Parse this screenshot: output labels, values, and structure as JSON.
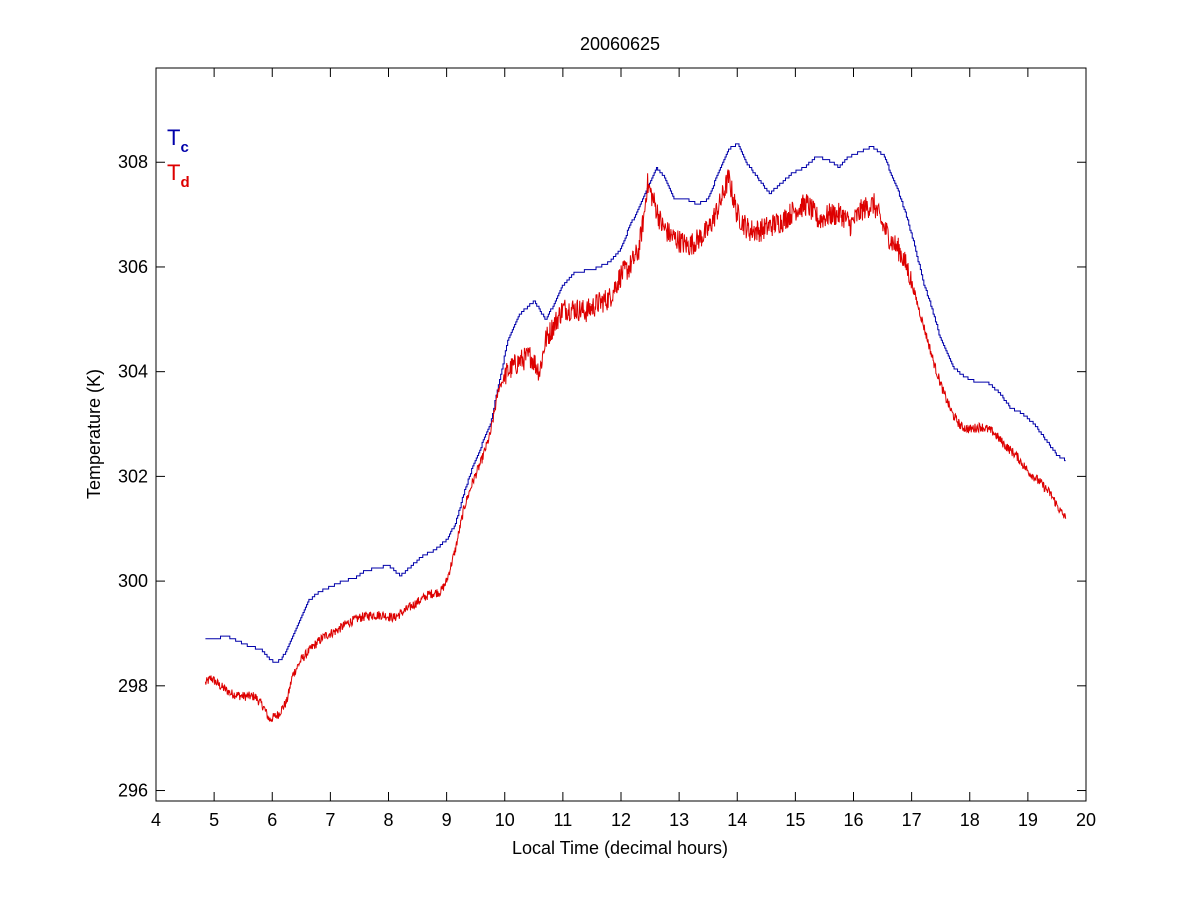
{
  "chart_data": {
    "type": "line",
    "title": "20060625",
    "xlabel": "Local Time (decimal hours)",
    "ylabel": "Temperature (K)",
    "xlim": [
      4,
      20
    ],
    "ylim": [
      295.8,
      309.8
    ],
    "xticks": [
      4,
      5,
      6,
      7,
      8,
      9,
      10,
      11,
      12,
      13,
      14,
      15,
      16,
      17,
      18,
      19,
      20
    ],
    "yticks": [
      296,
      298,
      300,
      302,
      304,
      306,
      308
    ],
    "grid": false,
    "legend": {
      "placement": "top-left",
      "entries": [
        {
          "main": "T",
          "sub": "c",
          "color": "#0000aa"
        },
        {
          "main": "T",
          "sub": "d",
          "color": "#dd0000"
        }
      ]
    },
    "series": [
      {
        "key": "Tc",
        "color": "#0000aa",
        "style": "step",
        "x": [
          4.85,
          5.0,
          5.2,
          5.4,
          5.6,
          5.8,
          5.95,
          6.05,
          6.15,
          6.3,
          6.45,
          6.6,
          6.8,
          7.0,
          7.2,
          7.4,
          7.6,
          7.8,
          8.0,
          8.2,
          8.4,
          8.6,
          8.8,
          9.0,
          9.15,
          9.3,
          9.45,
          9.6,
          9.75,
          9.9,
          10.05,
          10.25,
          10.5,
          10.7,
          10.85,
          11.0,
          11.2,
          11.5,
          11.8,
          12.0,
          12.15,
          12.3,
          12.45,
          12.6,
          12.75,
          12.9,
          13.1,
          13.3,
          13.5,
          13.7,
          13.85,
          14.0,
          14.15,
          14.35,
          14.55,
          14.75,
          14.95,
          15.15,
          15.35,
          15.55,
          15.75,
          15.9,
          16.1,
          16.3,
          16.5,
          16.6,
          16.75,
          16.9,
          17.05,
          17.2,
          17.35,
          17.5,
          17.7,
          17.9,
          18.1,
          18.3,
          18.5,
          18.7,
          18.9,
          19.1,
          19.3,
          19.5,
          19.65
        ],
        "y": [
          298.9,
          298.9,
          298.95,
          298.85,
          298.75,
          298.7,
          298.5,
          298.45,
          298.5,
          298.8,
          299.2,
          299.6,
          299.8,
          299.9,
          300.0,
          300.05,
          300.2,
          300.25,
          300.3,
          300.1,
          300.3,
          300.5,
          300.6,
          300.8,
          301.1,
          301.7,
          302.2,
          302.6,
          303.0,
          303.8,
          304.6,
          305.1,
          305.35,
          305.0,
          305.3,
          305.65,
          305.9,
          305.95,
          306.1,
          306.35,
          306.8,
          307.1,
          307.5,
          307.9,
          307.7,
          307.3,
          307.3,
          307.2,
          307.3,
          307.9,
          308.25,
          308.35,
          308.0,
          307.7,
          307.4,
          307.6,
          307.8,
          307.9,
          308.1,
          308.05,
          307.9,
          308.1,
          308.2,
          308.3,
          308.15,
          307.9,
          307.5,
          307.0,
          306.4,
          305.7,
          305.2,
          304.6,
          304.1,
          303.9,
          303.8,
          303.8,
          303.6,
          303.3,
          303.2,
          303.0,
          302.7,
          302.4,
          302.3
        ]
      },
      {
        "key": "Td",
        "color": "#dd0000",
        "style": "noisy",
        "x": [
          4.85,
          4.95,
          5.1,
          5.3,
          5.5,
          5.7,
          5.85,
          5.95,
          6.1,
          6.25,
          6.35,
          6.5,
          6.7,
          6.9,
          7.1,
          7.3,
          7.5,
          7.7,
          7.9,
          8.1,
          8.3,
          8.5,
          8.7,
          8.9,
          9.0,
          9.15,
          9.3,
          9.45,
          9.6,
          9.75,
          9.9,
          10.05,
          10.25,
          10.45,
          10.6,
          10.7,
          10.85,
          11.0,
          11.2,
          11.4,
          11.6,
          11.8,
          12.0,
          12.15,
          12.3,
          12.4,
          12.45,
          12.55,
          12.7,
          12.85,
          13.0,
          13.15,
          13.3,
          13.5,
          13.7,
          13.85,
          14.0,
          14.2,
          14.4,
          14.6,
          14.8,
          15.0,
          15.2,
          15.4,
          15.6,
          15.8,
          15.95,
          16.15,
          16.35,
          16.5,
          16.65,
          16.8,
          16.95,
          17.1,
          17.25,
          17.4,
          17.55,
          17.7,
          17.85,
          18.0,
          18.2,
          18.4,
          18.6,
          18.8,
          19.0,
          19.2,
          19.4,
          19.55,
          19.65
        ],
        "y": [
          298.05,
          298.15,
          298.0,
          297.85,
          297.8,
          297.8,
          297.6,
          297.35,
          297.45,
          297.7,
          298.2,
          298.5,
          298.75,
          298.95,
          299.05,
          299.2,
          299.3,
          299.35,
          299.35,
          299.3,
          299.45,
          299.6,
          299.75,
          299.8,
          300.0,
          300.6,
          301.4,
          301.9,
          302.3,
          302.8,
          303.7,
          304.0,
          304.2,
          304.3,
          304.0,
          304.6,
          304.9,
          305.2,
          305.2,
          305.15,
          305.3,
          305.4,
          305.85,
          306.0,
          306.3,
          307.0,
          307.6,
          307.3,
          306.8,
          306.6,
          306.5,
          306.4,
          306.5,
          306.7,
          307.2,
          307.7,
          307.0,
          306.7,
          306.7,
          306.8,
          306.9,
          307.1,
          307.2,
          306.9,
          307.0,
          307.0,
          306.8,
          307.1,
          307.2,
          306.8,
          306.5,
          306.3,
          305.9,
          305.3,
          304.7,
          304.1,
          303.6,
          303.2,
          302.95,
          302.9,
          302.95,
          302.85,
          302.6,
          302.4,
          302.1,
          301.9,
          301.65,
          301.35,
          301.2
        ]
      }
    ]
  }
}
